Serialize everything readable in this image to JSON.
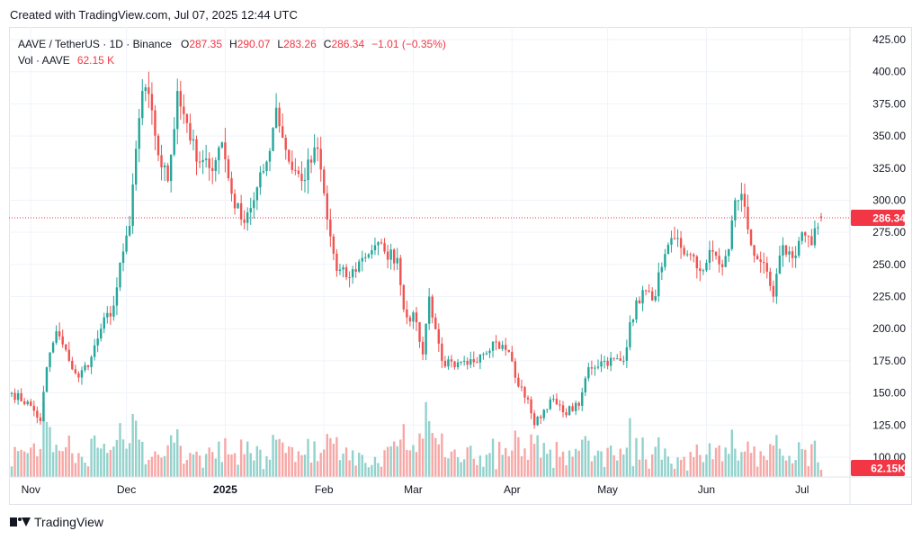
{
  "header": {
    "created_text": "Created with TradingView.com, Jul 07, 2025 12:44 UTC"
  },
  "legend": {
    "symbol": "AAVE / TetherUS · 1D · Binance",
    "open_label": "O",
    "open": "287.35",
    "high_label": "H",
    "high": "290.07",
    "low_label": "L",
    "low": "283.26",
    "close_label": "C",
    "close": "286.34",
    "change": "−1.01 (−0.35%)",
    "vol_label": "Vol · AAVE",
    "vol_value": "62.15 K"
  },
  "footer": {
    "brand": "TradingView"
  },
  "colors": {
    "up": "#26a69a",
    "down": "#ef5350",
    "up_vol": "#93d2cc",
    "down_vol": "#f7a8a6",
    "price_line": "#f23645",
    "grid": "#f0f3fa",
    "text": "#131722"
  },
  "chart_data": {
    "type": "candlestick",
    "title": "AAVE / TetherUS · 1D · Binance",
    "y_axis": {
      "side": "right",
      "ylim": [
        100,
        425
      ],
      "ticks": [
        "425.00",
        "400.00",
        "375.00",
        "350.00",
        "325.00",
        "300.00",
        "275.00",
        "250.00",
        "225.00",
        "200.00",
        "175.00",
        "150.00",
        "125.00",
        "100.00"
      ]
    },
    "x_axis": {
      "start": "2024-10-26",
      "end": "2025-07-07",
      "ticks": [
        {
          "label": "Nov",
          "date": "2024-11-01"
        },
        {
          "label": "Dec",
          "date": "2024-12-01"
        },
        {
          "label": "2025",
          "date": "2025-01-01",
          "bold": true
        },
        {
          "label": "Feb",
          "date": "2025-02-01"
        },
        {
          "label": "Mar",
          "date": "2025-03-01"
        },
        {
          "label": "Apr",
          "date": "2025-04-01"
        },
        {
          "label": "May",
          "date": "2025-05-01"
        },
        {
          "label": "Jun",
          "date": "2025-06-01"
        },
        {
          "label": "Jul",
          "date": "2025-07-01"
        }
      ]
    },
    "last_price": {
      "value": 286.34,
      "label": "286.34"
    },
    "last_volume": {
      "label": "62.15K"
    },
    "anchors": [
      [
        "2024-10-26",
        150
      ],
      [
        "2024-11-01",
        140
      ],
      [
        "2024-11-04",
        128
      ],
      [
        "2024-11-06",
        170
      ],
      [
        "2024-11-09",
        198
      ],
      [
        "2024-11-13",
        175
      ],
      [
        "2024-11-16",
        162
      ],
      [
        "2024-11-20",
        178
      ],
      [
        "2024-11-23",
        200
      ],
      [
        "2024-11-27",
        218
      ],
      [
        "2024-11-30",
        260
      ],
      [
        "2024-12-02",
        280
      ],
      [
        "2024-12-04",
        340
      ],
      [
        "2024-12-06",
        385
      ],
      [
        "2024-12-09",
        370
      ],
      [
        "2024-12-11",
        335
      ],
      [
        "2024-12-14",
        315
      ],
      [
        "2024-12-17",
        385
      ],
      [
        "2024-12-20",
        360
      ],
      [
        "2024-12-23",
        330
      ],
      [
        "2024-12-27",
        325
      ],
      [
        "2024-12-31",
        345
      ],
      [
        "2025-01-03",
        305
      ],
      [
        "2025-01-06",
        285
      ],
      [
        "2025-01-10",
        300
      ],
      [
        "2025-01-14",
        330
      ],
      [
        "2025-01-17",
        372
      ],
      [
        "2025-01-21",
        330
      ],
      [
        "2025-01-25",
        315
      ],
      [
        "2025-01-30",
        340
      ],
      [
        "2025-02-02",
        285
      ],
      [
        "2025-02-05",
        245
      ],
      [
        "2025-02-09",
        240
      ],
      [
        "2025-02-13",
        255
      ],
      [
        "2025-02-17",
        265
      ],
      [
        "2025-02-20",
        260
      ],
      [
        "2025-02-24",
        255
      ],
      [
        "2025-02-26",
        215
      ],
      [
        "2025-03-02",
        205
      ],
      [
        "2025-03-04",
        180
      ],
      [
        "2025-03-06",
        225
      ],
      [
        "2025-03-10",
        175
      ],
      [
        "2025-03-14",
        170
      ],
      [
        "2025-03-18",
        172
      ],
      [
        "2025-03-22",
        180
      ],
      [
        "2025-03-26",
        190
      ],
      [
        "2025-03-31",
        182
      ],
      [
        "2025-04-03",
        155
      ],
      [
        "2025-04-06",
        145
      ],
      [
        "2025-04-08",
        125
      ],
      [
        "2025-04-13",
        145
      ],
      [
        "2025-04-17",
        135
      ],
      [
        "2025-04-22",
        140
      ],
      [
        "2025-04-25",
        170
      ],
      [
        "2025-04-30",
        175
      ],
      [
        "2025-05-06",
        175
      ],
      [
        "2025-05-08",
        205
      ],
      [
        "2025-05-12",
        230
      ],
      [
        "2025-05-15",
        222
      ],
      [
        "2025-05-18",
        248
      ],
      [
        "2025-05-22",
        270
      ],
      [
        "2025-05-26",
        258
      ],
      [
        "2025-05-30",
        245
      ],
      [
        "2025-06-03",
        260
      ],
      [
        "2025-06-06",
        248
      ],
      [
        "2025-06-08",
        262
      ],
      [
        "2025-06-10",
        300
      ],
      [
        "2025-06-12",
        305
      ],
      [
        "2025-06-15",
        265
      ],
      [
        "2025-06-18",
        252
      ],
      [
        "2025-06-22",
        225
      ],
      [
        "2025-06-25",
        265
      ],
      [
        "2025-06-28",
        255
      ],
      [
        "2025-07-01",
        275
      ],
      [
        "2025-07-04",
        265
      ],
      [
        "2025-07-07",
        286.34
      ]
    ]
  }
}
